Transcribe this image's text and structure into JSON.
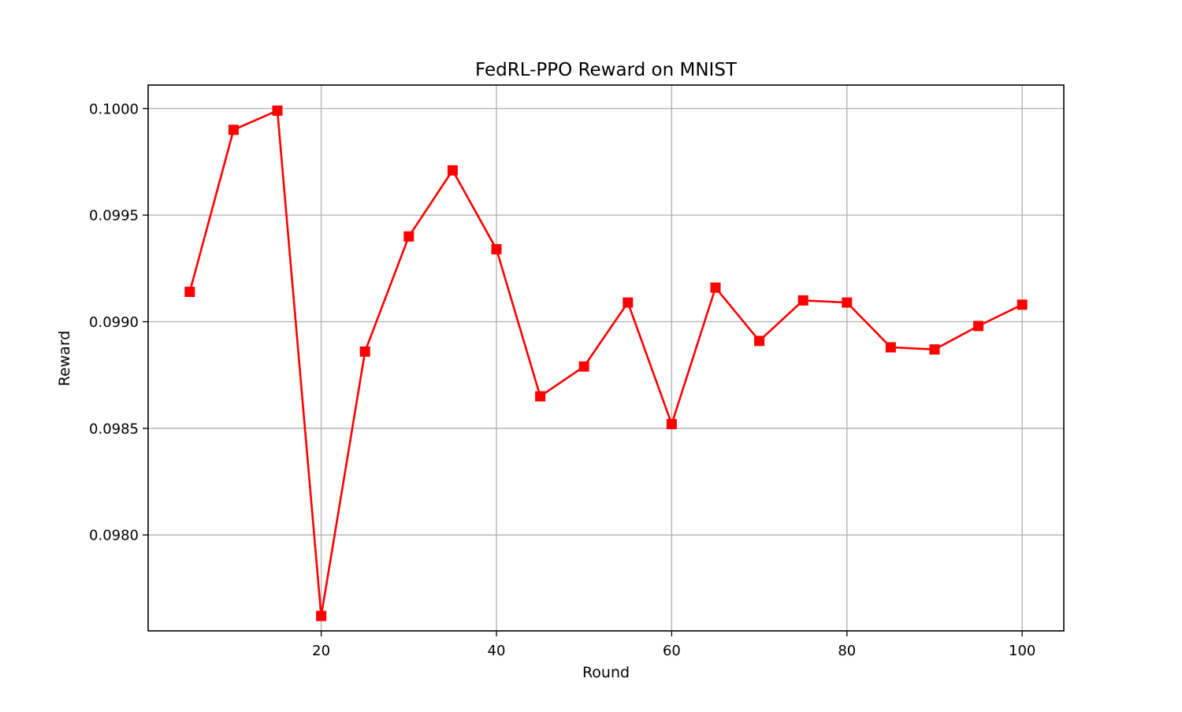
{
  "chart_data": {
    "type": "line",
    "title": "FedRL-PPO Reward on MNIST",
    "xlabel": "Round",
    "ylabel": "Reward",
    "x": [
      5,
      10,
      15,
      20,
      25,
      30,
      35,
      40,
      45,
      50,
      55,
      60,
      65,
      70,
      75,
      80,
      85,
      90,
      95,
      100
    ],
    "series": [
      {
        "color": "#ff0000",
        "marker": "square",
        "values": [
          0.09914,
          0.0999,
          0.09999,
          0.09762,
          0.09886,
          0.0994,
          0.09971,
          0.09934,
          0.09865,
          0.09879,
          0.09909,
          0.09852,
          0.09916,
          0.09891,
          0.0991,
          0.09909,
          0.09888,
          0.09887,
          0.09898,
          0.09908
        ]
      }
    ],
    "xlim": [
      0.25,
      104.75
    ],
    "ylim": [
      0.09755,
      0.10011
    ],
    "xticks": [
      20,
      40,
      60,
      80,
      100
    ],
    "xtick_labels": [
      "20",
      "40",
      "60",
      "80",
      "100"
    ],
    "yticks": [
      0.098,
      0.0985,
      0.099,
      0.0995,
      0.1
    ],
    "ytick_labels": [
      "0.0980",
      "0.0985",
      "0.0990",
      "0.0995",
      "0.1000"
    ],
    "grid": true,
    "grid_color": "#b0b0b0"
  }
}
